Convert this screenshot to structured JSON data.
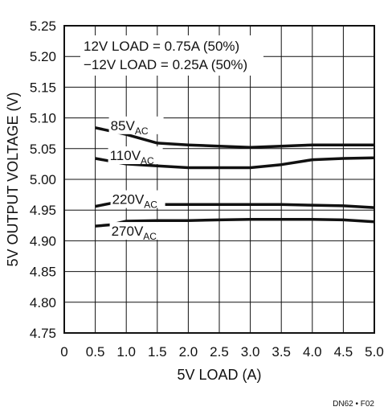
{
  "chart_data": {
    "type": "line",
    "xlabel": "5V LOAD (A)",
    "ylabel": "5V OUTPUT VOLTAGE (V)",
    "xlim": [
      0,
      5.0
    ],
    "ylim": [
      4.75,
      5.25
    ],
    "x_ticks": [
      "0",
      "0.5",
      "1.0",
      "1.5",
      "2.0",
      "2.5",
      "3.0",
      "3.5",
      "4.0",
      "4.5",
      "5.0"
    ],
    "y_ticks": [
      "4.75",
      "4.80",
      "4.85",
      "4.90",
      "4.95",
      "5.00",
      "5.05",
      "5.10",
      "5.15",
      "5.20",
      "5.25"
    ],
    "grid": true,
    "annotations": [
      "12V LOAD = 0.75A (50%)",
      "−12V LOAD = 0.25A (50%)"
    ],
    "series": [
      {
        "name": "85V",
        "name_sub": "AC",
        "x": [
          0.5,
          1.0,
          1.5,
          2.0,
          2.5,
          3.0,
          3.5,
          4.0,
          4.5,
          5.0
        ],
        "values": [
          5.084,
          5.073,
          5.059,
          5.056,
          5.054,
          5.052,
          5.054,
          5.056,
          5.056,
          5.056
        ]
      },
      {
        "name": "110V",
        "name_sub": "AC",
        "x": [
          0.5,
          1.0,
          1.5,
          2.0,
          2.5,
          3.0,
          3.5,
          4.0,
          4.5,
          5.0
        ],
        "values": [
          5.034,
          5.025,
          5.022,
          5.019,
          5.019,
          5.019,
          5.024,
          5.032,
          5.034,
          5.035
        ]
      },
      {
        "name": "220V",
        "name_sub": "AC",
        "x": [
          0.5,
          0.75,
          1.0,
          1.5,
          2.0,
          2.5,
          3.0,
          3.5,
          4.0,
          4.5,
          5.0
        ],
        "values": [
          4.956,
          4.961,
          4.961,
          4.959,
          4.959,
          4.959,
          4.959,
          4.959,
          4.958,
          4.957,
          4.954
        ]
      },
      {
        "name": "270V",
        "name_sub": "AC",
        "x": [
          0.5,
          0.75,
          1.0,
          1.5,
          2.0,
          2.5,
          3.0,
          3.5,
          4.0,
          4.5,
          5.0
        ],
        "values": [
          4.924,
          4.926,
          4.932,
          4.933,
          4.933,
          4.934,
          4.935,
          4.935,
          4.935,
          4.934,
          4.931
        ]
      }
    ]
  },
  "footer": "DN62 • F02"
}
